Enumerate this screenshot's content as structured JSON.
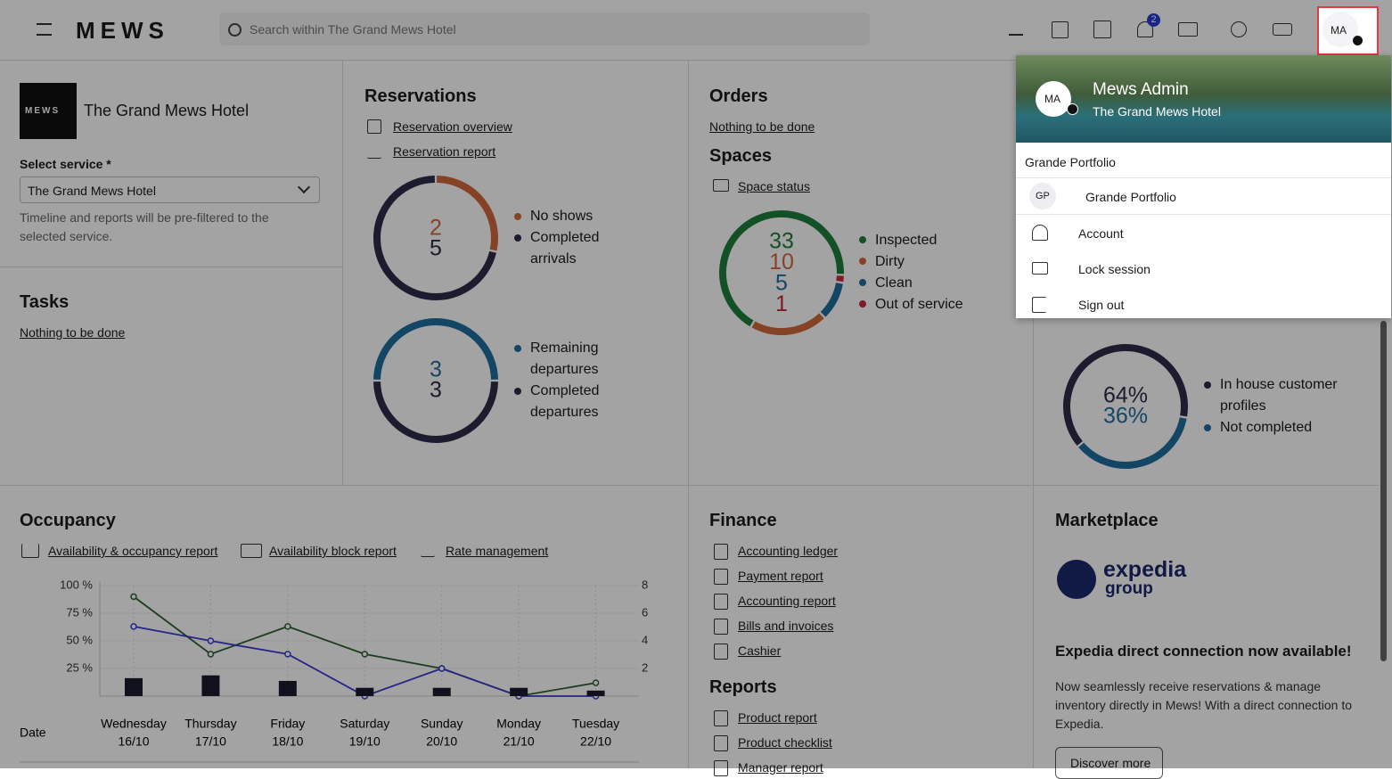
{
  "header": {
    "brand": "MEWS",
    "search_placeholder": "Search within The Grand Mews Hotel",
    "notification_count": "2",
    "avatar": "MA"
  },
  "hotel": {
    "logo_text": "MEWS",
    "name": "The Grand Mews Hotel",
    "select_label": "Select service *",
    "select_value": "The Grand Mews Hotel",
    "hint": "Timeline and reports will be pre-filtered to the selected service."
  },
  "tasks": {
    "title": "Tasks",
    "link": "Nothing to be done"
  },
  "reservations": {
    "title": "Reservations",
    "links": [
      "Reservation overview",
      "Reservation report"
    ],
    "arrivals": {
      "values": [
        2,
        5
      ],
      "labels": [
        "No shows",
        "Completed arrivals"
      ],
      "colors": [
        "#d0683b",
        "#2c2c48"
      ]
    },
    "departures": {
      "values": [
        3,
        3
      ],
      "labels": [
        "Remaining departures",
        "Completed departures"
      ],
      "colors": [
        "#1f6e9f",
        "#2c2c48"
      ]
    }
  },
  "orders": {
    "title": "Orders",
    "link": "Nothing to be done"
  },
  "spaces": {
    "title": "Spaces",
    "link": "Space status",
    "values": [
      33,
      10,
      5,
      1
    ],
    "labels": [
      "Inspected",
      "Dirty",
      "Clean",
      "Out of service"
    ],
    "colors": [
      "#1f7d3b",
      "#d0683b",
      "#1f6e9f",
      "#c8283c"
    ]
  },
  "profiles": {
    "values": [
      64,
      36
    ],
    "value_labels": [
      "64%",
      "36%"
    ],
    "labels": [
      "In house customer profiles",
      "Not completed"
    ],
    "colors": [
      "#2c2c48",
      "#1f6e9f"
    ]
  },
  "occupancy": {
    "title": "Occupancy",
    "links": [
      "Availability & occupancy report",
      "Availability block report",
      "Rate management"
    ]
  },
  "chart_data": {
    "type": "line",
    "categories": [
      "Wednesday",
      "Thursday",
      "Friday",
      "Saturday",
      "Sunday",
      "Monday",
      "Tuesday"
    ],
    "dates": [
      "16/10",
      "17/10",
      "18/10",
      "19/10",
      "20/10",
      "21/10",
      "22/10"
    ],
    "xlabel": "Date",
    "ylim": [
      0,
      100
    ],
    "yticks": [
      {
        "value": 100,
        "label": "100 %"
      },
      {
        "value": 75,
        "label": "75 %"
      },
      {
        "value": 50,
        "label": "50 %"
      },
      {
        "value": 25,
        "label": "25 %"
      }
    ],
    "y2lim": [
      0,
      8
    ],
    "y2ticks": [
      8,
      6,
      4,
      2
    ],
    "grid": true,
    "series": [
      {
        "type": "line",
        "color": "#2f5f32",
        "values": [
          90,
          38,
          63,
          38,
          25,
          0,
          12
        ]
      },
      {
        "type": "line",
        "color": "#3b3bd0",
        "values": [
          63,
          50,
          38,
          0,
          25,
          0,
          0
        ]
      },
      {
        "type": "bar",
        "axis": "y2",
        "color": "#1c1c2e",
        "values": [
          1.3,
          1.5,
          1.1,
          0.6,
          0.6,
          0.6,
          0.4
        ]
      }
    ]
  },
  "finance": {
    "title": "Finance",
    "links": [
      "Accounting ledger",
      "Payment report",
      "Accounting report",
      "Bills and invoices",
      "Cashier"
    ]
  },
  "reports": {
    "title": "Reports",
    "links": [
      "Product report",
      "Product checklist",
      "Manager report"
    ]
  },
  "marketplace": {
    "title": "Marketplace",
    "logo": [
      "expedia",
      "group"
    ],
    "headline": "Expedia direct connection now available!",
    "body": "Now seamlessly receive reservations & manage inventory directly in Mews! With a direct connection to Expedia.",
    "button": "Discover more"
  },
  "menu": {
    "avatar": "MA",
    "name": "Mews Admin",
    "subtitle": "The Grand Mews Hotel",
    "section": "Grande Portfolio",
    "portfolio_avatar": "GP",
    "portfolio": "Grande Portfolio",
    "items": [
      "Account",
      "Lock session",
      "Sign out"
    ]
  }
}
